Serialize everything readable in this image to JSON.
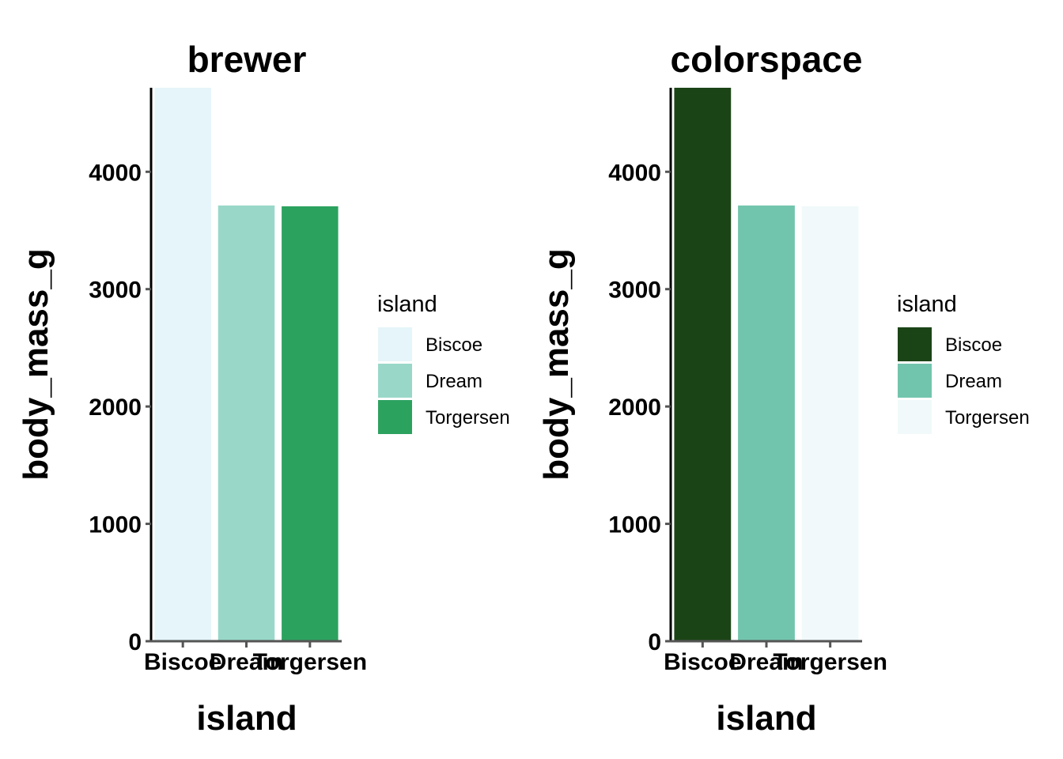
{
  "chart_data": [
    {
      "type": "bar",
      "title": "brewer",
      "xlabel": "island",
      "ylabel": "body_mass_g",
      "categories": [
        "Biscoe",
        "Dream",
        "Torgersen"
      ],
      "values": [
        4716,
        3713,
        3706
      ],
      "colors": [
        "#e5f5f9",
        "#99d8c9",
        "#2ca25f"
      ],
      "ylim": [
        0,
        4716
      ],
      "yticks": [
        0,
        1000,
        2000,
        3000,
        4000
      ],
      "legend": {
        "title": "island",
        "placement": "right",
        "entries": [
          "Biscoe",
          "Dream",
          "Torgersen"
        ]
      },
      "grid": false
    },
    {
      "type": "bar",
      "title": "colorspace",
      "xlabel": "island",
      "ylabel": "body_mass_g",
      "categories": [
        "Biscoe",
        "Dream",
        "Torgersen"
      ],
      "values": [
        4716,
        3713,
        3706
      ],
      "colors": [
        "#1b4416",
        "#72c5ad",
        "#f1f9fa"
      ],
      "ylim": [
        0,
        4716
      ],
      "yticks": [
        0,
        1000,
        2000,
        3000,
        4000
      ],
      "legend": {
        "title": "island",
        "placement": "right",
        "entries": [
          "Biscoe",
          "Dream",
          "Torgersen"
        ]
      },
      "grid": false
    }
  ]
}
